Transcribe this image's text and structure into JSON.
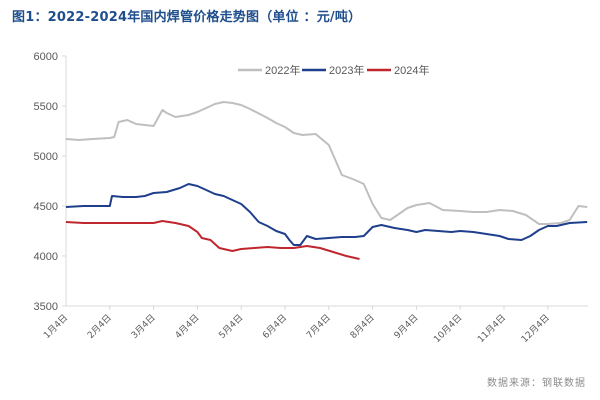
{
  "title": "图1：2022-2024年国内焊管价格走势图（单位 ：元/吨）",
  "source": "数据来源：钢联数据",
  "chart_data": {
    "type": "line",
    "title": "图1：2022-2024年国内焊管价格走势图（单位 ：元/吨）",
    "xlabel": "",
    "ylabel": "元/吨",
    "ylim": [
      3500,
      6000
    ],
    "yticks": [
      3500,
      4000,
      4500,
      5000,
      5500,
      6000
    ],
    "categories": [
      "1月4日",
      "2月4日",
      "3月4日",
      "4月4日",
      "5月4日",
      "6月4日",
      "7月4日",
      "8月4日",
      "9月4日",
      "10月4日",
      "11月4日",
      "12月4日"
    ],
    "grid": false,
    "legend_position": "top",
    "series": [
      {
        "name": "2022年",
        "color": "#bfbfbf",
        "x": [
          0,
          0.3,
          0.6,
          1.0,
          1.1,
          1.2,
          1.4,
          1.6,
          1.8,
          2.0,
          2.2,
          2.3,
          2.5,
          2.8,
          3.0,
          3.2,
          3.4,
          3.6,
          3.8,
          4.0,
          4.2,
          4.6,
          4.8,
          5.0,
          5.2,
          5.4,
          5.7,
          6.0,
          6.3,
          6.6,
          6.8,
          7.0,
          7.2,
          7.4,
          7.6,
          7.8,
          8.0,
          8.3,
          8.6,
          9.0,
          9.3,
          9.6,
          9.9,
          10.2,
          10.5,
          10.8,
          11.0,
          11.3,
          11.5,
          11.7,
          11.9
        ],
        "values": [
          5170,
          5160,
          5170,
          5180,
          5190,
          5340,
          5360,
          5320,
          5310,
          5300,
          5460,
          5430,
          5390,
          5410,
          5440,
          5480,
          5520,
          5540,
          5530,
          5510,
          5470,
          5380,
          5330,
          5290,
          5230,
          5210,
          5220,
          5110,
          4810,
          4760,
          4720,
          4520,
          4380,
          4360,
          4420,
          4480,
          4510,
          4530,
          4460,
          4450,
          4440,
          4440,
          4460,
          4450,
          4410,
          4320,
          4320,
          4330,
          4360,
          4500,
          4490
        ]
      },
      {
        "name": "2023年",
        "color": "#1f3f8c",
        "x": [
          0,
          0.4,
          0.8,
          1.0,
          1.05,
          1.3,
          1.6,
          1.8,
          2.0,
          2.3,
          2.6,
          2.8,
          3.0,
          3.2,
          3.4,
          3.6,
          3.8,
          4.0,
          4.2,
          4.4,
          4.6,
          4.8,
          5.0,
          5.1,
          5.2,
          5.35,
          5.5,
          5.7,
          6.0,
          6.3,
          6.6,
          6.8,
          7.0,
          7.2,
          7.5,
          7.8,
          8.0,
          8.2,
          8.5,
          8.8,
          9.0,
          9.3,
          9.6,
          9.9,
          10.1,
          10.4,
          10.6,
          10.8,
          11.0,
          11.2,
          11.5,
          11.9
        ],
        "values": [
          4490,
          4500,
          4500,
          4500,
          4600,
          4590,
          4590,
          4600,
          4630,
          4640,
          4680,
          4720,
          4700,
          4660,
          4620,
          4600,
          4560,
          4520,
          4440,
          4340,
          4300,
          4250,
          4220,
          4160,
          4110,
          4110,
          4200,
          4170,
          4180,
          4190,
          4190,
          4200,
          4290,
          4310,
          4280,
          4260,
          4240,
          4260,
          4250,
          4240,
          4250,
          4240,
          4220,
          4200,
          4170,
          4160,
          4200,
          4260,
          4300,
          4300,
          4330,
          4340
        ]
      },
      {
        "name": "2024年",
        "color": "#c0262d",
        "x": [
          0,
          0.4,
          0.8,
          1.2,
          1.6,
          2.0,
          2.2,
          2.5,
          2.8,
          3.0,
          3.1,
          3.3,
          3.5,
          3.8,
          4.0,
          4.3,
          4.6,
          4.9,
          5.2,
          5.5,
          5.8,
          6.1,
          6.4,
          6.7
        ],
        "values": [
          4340,
          4330,
          4330,
          4330,
          4330,
          4330,
          4350,
          4330,
          4300,
          4240,
          4180,
          4160,
          4080,
          4050,
          4070,
          4080,
          4090,
          4080,
          4080,
          4100,
          4080,
          4040,
          4000,
          3970
        ]
      }
    ]
  }
}
